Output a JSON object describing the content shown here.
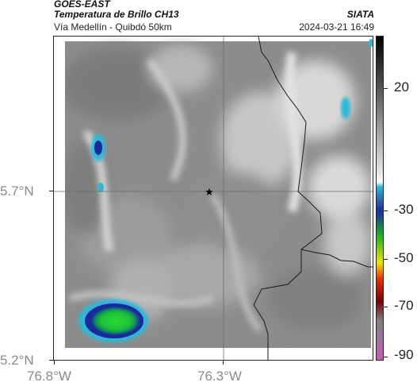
{
  "header": {
    "source": "GOES-EAST",
    "product": "Temperatura de Brillo CH13",
    "org": "SIATA",
    "route": "Vía Medellín - Quibdó 50km",
    "datetime": "2024-03-21 16:49"
  },
  "map": {
    "lat_ticks": [
      "5.7°N",
      "5.2°N"
    ],
    "lon_ticks": [
      "76.8°W",
      "76.3°W"
    ],
    "marker_icon": "star-icon",
    "gridline_color": "#6b6b6b",
    "border_color": "#1a1a1a"
  },
  "colorbar": {
    "labels": [
      "20",
      "-30",
      "-50",
      "-70",
      "-90"
    ],
    "stops": [
      "#000000",
      "#4a4a4a",
      "#9a9a9a",
      "#e6e6e6",
      "#ffffff",
      "#2fb7d8",
      "#1a2a9c",
      "#22b522",
      "#f2e400",
      "#e03000",
      "#7a0000",
      "#808080",
      "#c85bbf"
    ]
  }
}
